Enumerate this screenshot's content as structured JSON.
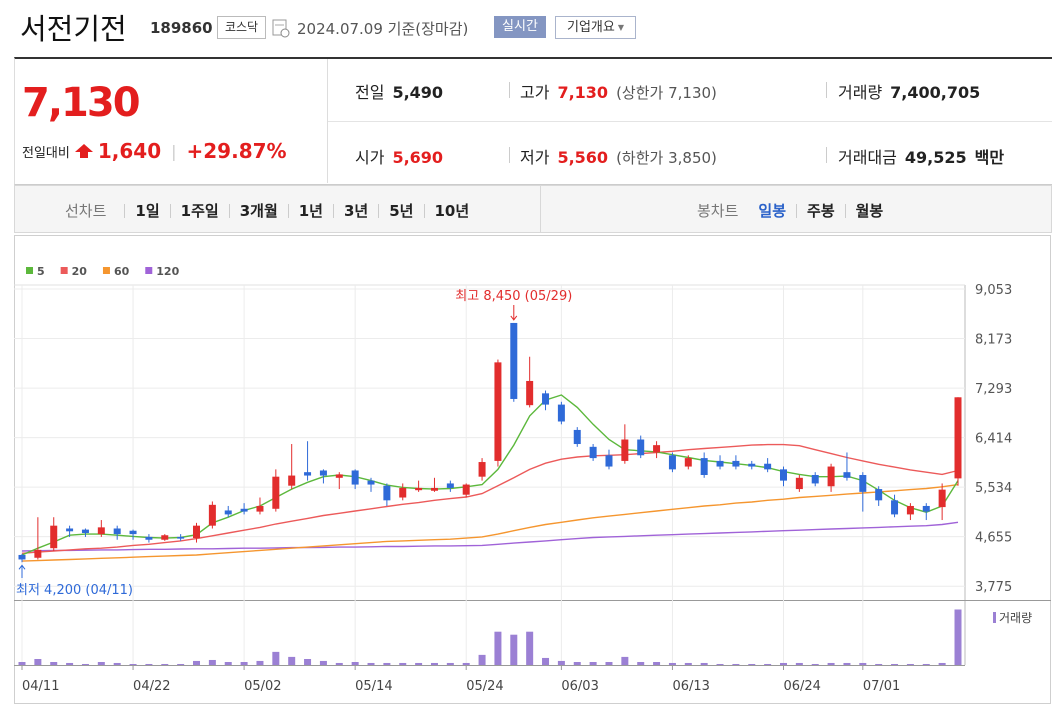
{
  "header": {
    "name": "서전기전",
    "code": "189860",
    "market": "코스닥",
    "date": "2024.07.09 기준(장마감)",
    "realtime": "실시간",
    "overview": "기업개요"
  },
  "price": {
    "current": "7,130",
    "change_label": "전일대비",
    "change": "1,640",
    "rate": "+29.87%"
  },
  "stats": [
    {
      "label": "전일",
      "value": "5,490"
    },
    {
      "label": "고가",
      "value": "7,130",
      "note": "(상한가 7,130)"
    },
    {
      "label": "거래량",
      "value": "7,400,705"
    },
    {
      "label": "시가",
      "value": "5,690"
    },
    {
      "label": "저가",
      "value": "5,560",
      "note": "(하한가 3,850)"
    },
    {
      "label": "거래대금",
      "value": "49,525",
      "unit": "백만"
    }
  ],
  "tabs": {
    "line_label": "선차트",
    "periods": [
      "1일",
      "1주일",
      "3개월",
      "1년",
      "3년",
      "5년",
      "10년"
    ],
    "candle_label": "봉차트",
    "options": [
      "일봉",
      "주봉",
      "월봉"
    ]
  },
  "chart_data": {
    "type": "candlestick",
    "categories": [
      "04/11",
      null,
      null,
      null,
      null,
      null,
      null,
      "04/22",
      null,
      null,
      null,
      null,
      null,
      null,
      "05/02",
      null,
      null,
      null,
      null,
      null,
      null,
      "05/14",
      null,
      null,
      null,
      null,
      null,
      null,
      "05/24",
      null,
      null,
      null,
      null,
      null,
      "06/03",
      null,
      null,
      null,
      null,
      null,
      null,
      "06/13",
      null,
      null,
      null,
      null,
      null,
      null,
      "06/24",
      null,
      null,
      null,
      null,
      "07/01",
      null,
      null,
      null,
      null,
      null,
      null
    ],
    "open": [
      4330,
      4280,
      4450,
      4800,
      4780,
      4700,
      4800,
      4760,
      4650,
      4600,
      4650,
      4630,
      4850,
      5120,
      5150,
      5100,
      5150,
      5560,
      5800,
      5830,
      5700,
      5830,
      5650,
      5560,
      5350,
      5480,
      5470,
      5600,
      5400,
      5720,
      6000,
      8450,
      6990,
      7200,
      7000,
      6550,
      6250,
      6100,
      6000,
      6380,
      6150,
      6100,
      5900,
      6050,
      6000,
      6000,
      5950,
      5950,
      5850,
      5500,
      5750,
      5550,
      5800,
      5750,
      5500,
      5300,
      5050,
      5200,
      5180,
      5690
    ],
    "high": [
      4350,
      5000,
      5000,
      4850,
      4800,
      4950,
      4850,
      4780,
      4700,
      4700,
      4700,
      4900,
      5280,
      5200,
      5250,
      5350,
      5850,
      6300,
      6350,
      5850,
      5800,
      5850,
      5700,
      5600,
      5600,
      5650,
      5700,
      5650,
      5600,
      6050,
      7800,
      8450,
      7850,
      7250,
      7050,
      6600,
      6300,
      6200,
      6650,
      6450,
      6350,
      6150,
      6100,
      6150,
      6100,
      6100,
      6000,
      6050,
      5900,
      5750,
      5800,
      5950,
      6150,
      5800,
      5550,
      5400,
      5250,
      5250,
      5600,
      7130
    ],
    "low": [
      4200,
      4250,
      4400,
      4650,
      4650,
      4650,
      4600,
      4600,
      4550,
      4580,
      4580,
      4550,
      4800,
      5000,
      5050,
      5050,
      5100,
      5500,
      5650,
      5600,
      5500,
      5500,
      5450,
      5200,
      5300,
      5450,
      5450,
      5450,
      5350,
      5650,
      5900,
      7050,
      6950,
      6900,
      6650,
      6250,
      6000,
      5850,
      5950,
      6050,
      6050,
      5800,
      5850,
      5700,
      5850,
      5850,
      5850,
      5800,
      5550,
      5450,
      5550,
      5450,
      5650,
      5100,
      5200,
      5000,
      4950,
      4950,
      4950,
      5560
    ],
    "close": [
      4250,
      4420,
      4850,
      4750,
      4720,
      4820,
      4700,
      4700,
      4600,
      4680,
      4620,
      4850,
      5220,
      5050,
      5100,
      5200,
      5720,
      5740,
      5740,
      5740,
      5760,
      5580,
      5580,
      5300,
      5520,
      5520,
      5520,
      5520,
      5580,
      5980,
      7750,
      7100,
      7420,
      7000,
      6700,
      6300,
      6050,
      5900,
      6380,
      6100,
      6280,
      5850,
      6050,
      5750,
      5900,
      5900,
      5900,
      5850,
      5650,
      5700,
      5600,
      5900,
      5700,
      5450,
      5300,
      5050,
      5200,
      5100,
      5490,
      7130
    ],
    "candle_colors": {
      "up": "#e22d2d",
      "down": "#2f6ad8"
    },
    "series": [
      {
        "name": "5",
        "color": "#5cb83c",
        "values": [
          4330,
          4450,
          4560,
          4680,
          4700,
          4700,
          4680,
          4660,
          4640,
          4630,
          4640,
          4690,
          4900,
          5000,
          5120,
          5200,
          5350,
          5500,
          5620,
          5720,
          5750,
          5720,
          5650,
          5570,
          5530,
          5510,
          5500,
          5510,
          5540,
          5580,
          5850,
          6280,
          6800,
          7080,
          7170,
          6950,
          6650,
          6380,
          6200,
          6180,
          6160,
          6110,
          6060,
          6010,
          5980,
          5950,
          5920,
          5880,
          5810,
          5760,
          5720,
          5720,
          5730,
          5650,
          5480,
          5300,
          5170,
          5090,
          5200,
          5650
        ]
      },
      {
        "name": "20",
        "color": "#ec5a5a",
        "values": [
          4360,
          4380,
          4400,
          4420,
          4440,
          4450,
          4470,
          4500,
          4520,
          4550,
          4580,
          4620,
          4670,
          4720,
          4770,
          4820,
          4880,
          4930,
          4980,
          5030,
          5070,
          5110,
          5150,
          5190,
          5230,
          5260,
          5300,
          5330,
          5360,
          5420,
          5560,
          5700,
          5850,
          5960,
          6030,
          6070,
          6090,
          6100,
          6110,
          6130,
          6150,
          6170,
          6200,
          6220,
          6240,
          6260,
          6280,
          6290,
          6290,
          6270,
          6200,
          6130,
          6060,
          6000,
          5940,
          5890,
          5840,
          5800,
          5760,
          5830
        ]
      },
      {
        "name": "60",
        "color": "#f5962f",
        "values": [
          4220,
          4230,
          4240,
          4250,
          4260,
          4270,
          4280,
          4290,
          4300,
          4310,
          4320,
          4330,
          4350,
          4370,
          4390,
          4410,
          4430,
          4450,
          4470,
          4490,
          4510,
          4530,
          4550,
          4570,
          4580,
          4590,
          4600,
          4610,
          4630,
          4650,
          4700,
          4760,
          4820,
          4870,
          4910,
          4950,
          4990,
          5020,
          5050,
          5080,
          5110,
          5140,
          5170,
          5200,
          5220,
          5250,
          5270,
          5300,
          5320,
          5350,
          5370,
          5390,
          5410,
          5430,
          5450,
          5470,
          5490,
          5510,
          5540,
          5580
        ]
      },
      {
        "name": "120",
        "color": "#a063d8",
        "values": [
          4400,
          4405,
          4410,
          4410,
          4415,
          4420,
          4420,
          4425,
          4430,
          4430,
          4435,
          4440,
          4440,
          4445,
          4450,
          4450,
          4455,
          4460,
          4460,
          4465,
          4470,
          4470,
          4475,
          4480,
          4480,
          4485,
          4490,
          4490,
          4495,
          4500,
          4520,
          4540,
          4560,
          4580,
          4600,
          4620,
          4640,
          4650,
          4660,
          4670,
          4680,
          4690,
          4700,
          4710,
          4720,
          4730,
          4740,
          4750,
          4760,
          4770,
          4780,
          4790,
          4800,
          4810,
          4820,
          4830,
          4840,
          4850,
          4870,
          4910
        ]
      }
    ],
    "ylim": [
      3530,
      9053
    ],
    "yticks": [
      {
        "value": 9053,
        "label": "9,053"
      },
      {
        "value": 8173,
        "label": "8,173"
      },
      {
        "value": 7293,
        "label": "7,293"
      },
      {
        "value": 6414,
        "label": "6,414"
      },
      {
        "value": 5534,
        "label": "5,534"
      },
      {
        "value": 4655,
        "label": "4,655"
      },
      {
        "value": 3775,
        "label": "3,775"
      }
    ],
    "grid": true,
    "high_label": "최고 8,450 (05/29)",
    "low_label": "최저 4,200 (04/11)",
    "volume_label": "거래량",
    "volume_color": "#9b80d4",
    "volume": [
      400000,
      800000,
      400000,
      270000,
      135000,
      400000,
      270000,
      135000,
      135000,
      135000,
      135000,
      540000,
      670000,
      400000,
      400000,
      540000,
      1750000,
      1080000,
      800000,
      540000,
      270000,
      400000,
      270000,
      270000,
      270000,
      270000,
      270000,
      270000,
      270000,
      1350000,
      4440000,
      4040000,
      4440000,
      940000,
      540000,
      400000,
      400000,
      400000,
      1080000,
      400000,
      400000,
      270000,
      270000,
      270000,
      135000,
      135000,
      135000,
      135000,
      270000,
      270000,
      135000,
      270000,
      270000,
      270000,
      135000,
      135000,
      135000,
      135000,
      270000,
      7400705
    ],
    "vlim": [
      0,
      8000000
    ]
  }
}
